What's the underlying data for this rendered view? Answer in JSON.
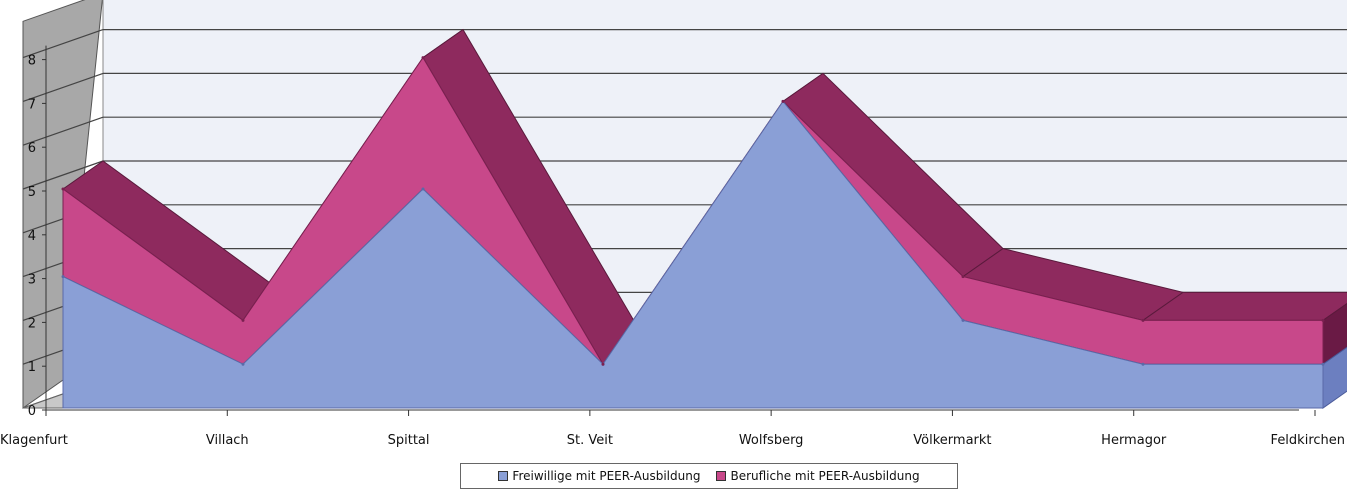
{
  "chart_data": {
    "type": "area",
    "stacked": true,
    "three_d": true,
    "categories": [
      "Klagenfurt",
      "Villach",
      "Spittal",
      "St. Veit",
      "Wolfsberg",
      "Völkermarkt",
      "Hermagor",
      "Feldkirchen"
    ],
    "series": [
      {
        "name": "Freiwillige mit PEER-Ausbildung",
        "values": [
          3,
          1,
          5,
          1,
          7,
          2,
          1,
          1
        ],
        "color": "#8a9fd6"
      },
      {
        "name": "Berufliche mit PEER-Ausbildung",
        "values": [
          2,
          1,
          3,
          0,
          0,
          1,
          1,
          1
        ],
        "color": "#c8488a"
      }
    ],
    "ylim": [
      0,
      8
    ],
    "yticks": [
      "0",
      "1",
      "2",
      "3",
      "4",
      "5",
      "6",
      "7",
      "8"
    ],
    "grid": true,
    "legend_position": "bottom",
    "wall_color": "#eef1f8",
    "side_wall_color": "#a8a8a8",
    "top_color": "#8e2a5e"
  }
}
